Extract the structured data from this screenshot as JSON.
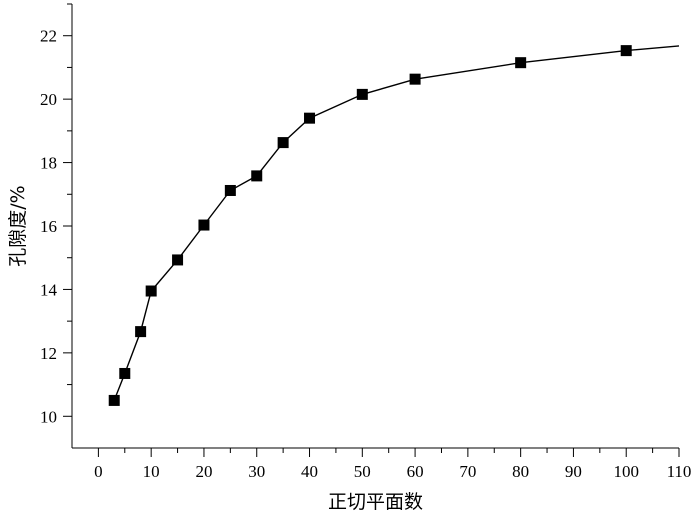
{
  "chart_data": {
    "type": "line",
    "xlabel": "正切平面数",
    "ylabel": "孔隙度/%",
    "xlim": [
      -5,
      110
    ],
    "ylim": [
      9,
      23
    ],
    "x_ticks": [
      0,
      10,
      20,
      30,
      40,
      50,
      60,
      70,
      80,
      90,
      100,
      110
    ],
    "y_ticks": [
      10,
      12,
      14,
      16,
      18,
      20,
      22
    ],
    "grid": false,
    "marker": "square",
    "line_color": "#000000",
    "series": [
      {
        "x": [
          3,
          5,
          8,
          10,
          15,
          20,
          25,
          30,
          35,
          40,
          50,
          60,
          80,
          100
        ],
        "y": [
          10.5,
          11.35,
          12.67,
          13.95,
          14.93,
          16.03,
          17.12,
          17.58,
          18.63,
          19.4,
          20.15,
          20.63,
          21.15,
          21.53
        ]
      }
    ],
    "line_extends_to_x": 110,
    "line_end_y": 21.68
  }
}
